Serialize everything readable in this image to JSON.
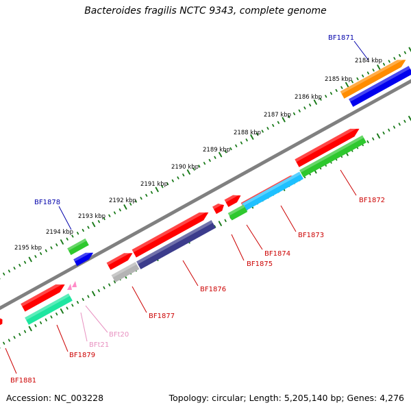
{
  "title": "Bacteroides fragilis NCTC 9343, complete genome",
  "footer": {
    "accession": "Accession: NC_003228",
    "summary": "Topology: circular; Length: 5,205,140 bp; Genes: 4,276"
  },
  "colors": {
    "backbone": "#808080",
    "tick": "#1a7a1a",
    "gene_red": "#ff0000",
    "gene_green": "#2ec82e",
    "gene_blue": "#0000ee",
    "gene_orange": "#ff8c00",
    "gene_purple": "#3c3c8c",
    "gene_cyan": "#1ec0ff",
    "gene_teal": "#1ee6a0",
    "gene_gray": "#b4b4b4",
    "gene_pink": "#ff8cc8",
    "label_red": "#cc0000",
    "label_blue": "#0000aa",
    "label_pink": "#e890c0"
  },
  "scale_labels": [
    "2184 kbp",
    "2185 kbp",
    "2186 kbp",
    "2187 kbp",
    "2188 kbp",
    "2189 kbp",
    "2190 kbp",
    "2191 kbp",
    "2192 kbp",
    "2193 kbp",
    "2194 kbp",
    "2195 kbp"
  ],
  "gene_labels": [
    "BF1871",
    "BF1872",
    "BF1873",
    "BF1874",
    "BF1875",
    "BF1876",
    "BF1877",
    "BF1878",
    "BF1879",
    "BF1881",
    "BFt20",
    "BFt21"
  ]
}
